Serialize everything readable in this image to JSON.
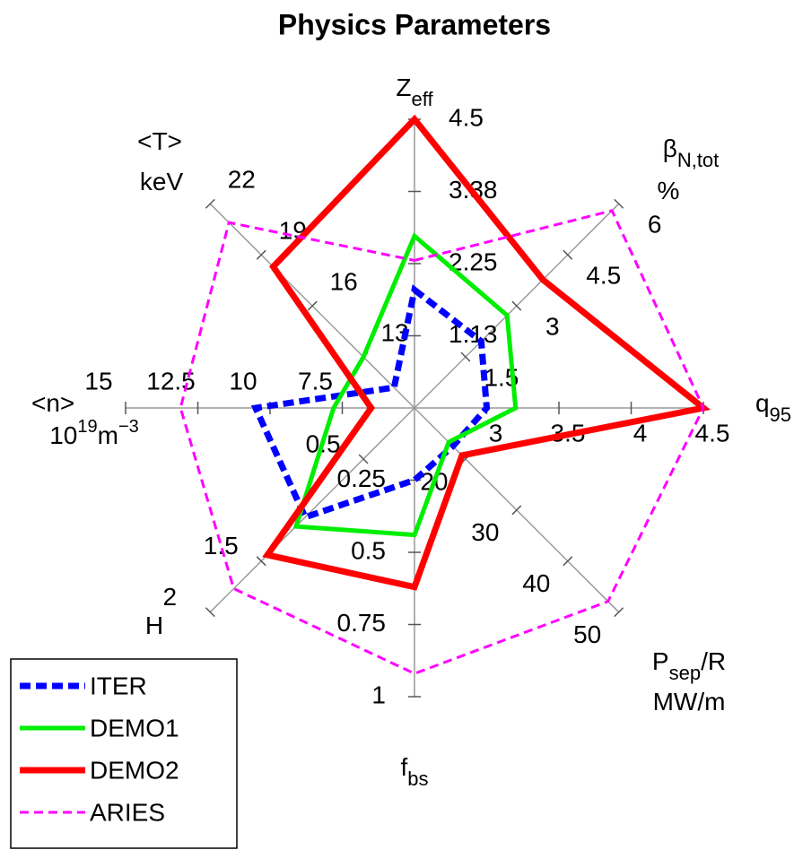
{
  "chart_data": {
    "type": "radar",
    "title": "Physics Parameters",
    "legend": "lower left",
    "axes": [
      {
        "label": [
          [
            {
              "text": "Z"
            },
            {
              "text": "eff",
              "shift": "sub"
            }
          ]
        ],
        "lim": [
          0,
          4.5
        ],
        "ticks": [
          {
            "value": 1.125,
            "label": "1.13"
          },
          2.25,
          {
            "value": 3.375,
            "label": "3.38"
          },
          4.5
        ]
      },
      {
        "label": [
          [
            {
              "text": "β"
            },
            {
              "text": "N,tot",
              "shift": "sub"
            }
          ],
          [
            {
              "text": "%"
            }
          ]
        ],
        "lim": [
          0,
          6
        ],
        "ticks": [
          1.5,
          3,
          4.5,
          6
        ]
      },
      {
        "label": [
          [
            {
              "text": "q"
            },
            {
              "text": "95",
              "shift": "sub"
            }
          ]
        ],
        "lim": [
          2.5,
          4.5
        ],
        "ticks": [
          3,
          3.5,
          4,
          4.5
        ]
      },
      {
        "label": [
          [
            {
              "text": "P"
            },
            {
              "text": "sep",
              "shift": "sub"
            },
            {
              "text": "/R"
            }
          ],
          [
            {
              "text": "MW/m"
            }
          ]
        ],
        "lim": [
          10,
          50
        ],
        "ticks": [
          20,
          30,
          40,
          50
        ]
      },
      {
        "label": [
          [
            {
              "text": "f"
            },
            {
              "text": "bs",
              "shift": "sub"
            }
          ]
        ],
        "lim": [
          0,
          1
        ],
        "ticks": [
          0.25,
          0.5,
          0.75,
          1
        ]
      },
      {
        "label": [
          [
            {
              "text": "H"
            }
          ]
        ],
        "lim": [
          0,
          2
        ],
        "ticks": [
          0.5,
          1.5,
          2
        ]
      },
      {
        "label": [
          [
            {
              "text": "<n>"
            }
          ],
          [
            {
              "text": "10"
            },
            {
              "text": "19",
              "shift": "super"
            },
            {
              "text": "m"
            },
            {
              "text": "−3",
              "shift": "super"
            }
          ]
        ],
        "lim": [
          5,
          15
        ],
        "ticks": [
          7.5,
          10,
          12.5,
          15
        ]
      },
      {
        "label": [
          [
            {
              "text": "<T>"
            }
          ],
          [
            {
              "text": "keV"
            }
          ]
        ],
        "lim": [
          10,
          22
        ],
        "ticks": [
          13,
          16,
          19,
          22
        ]
      }
    ],
    "series": [
      {
        "name": "ITER",
        "color": "#0000ff",
        "line_style": "dashed",
        "values": [
          1.84,
          1.96,
          3.0,
          17.5,
          0.25,
          1.07,
          10.5,
          11.2
        ]
      },
      {
        "name": "DEMO1",
        "color": "#00ee00",
        "line_style": "solid",
        "values": [
          2.68,
          2.72,
          3.2,
          16.7,
          0.44,
          1.16,
          7.8,
          13.0
        ]
      },
      {
        "name": "DEMO2",
        "color": "#ff0000",
        "line_style": "solid",
        "values": [
          4.5,
          3.77,
          4.5,
          19.3,
          0.62,
          1.44,
          6.5,
          18.3
        ]
      },
      {
        "name": "ARIES",
        "color": "#ff00ff",
        "line_style": "dashed",
        "values": [
          2.3,
          5.8,
          4.5,
          47.9,
          0.92,
          1.77,
          13.1,
          20.9
        ]
      }
    ]
  }
}
